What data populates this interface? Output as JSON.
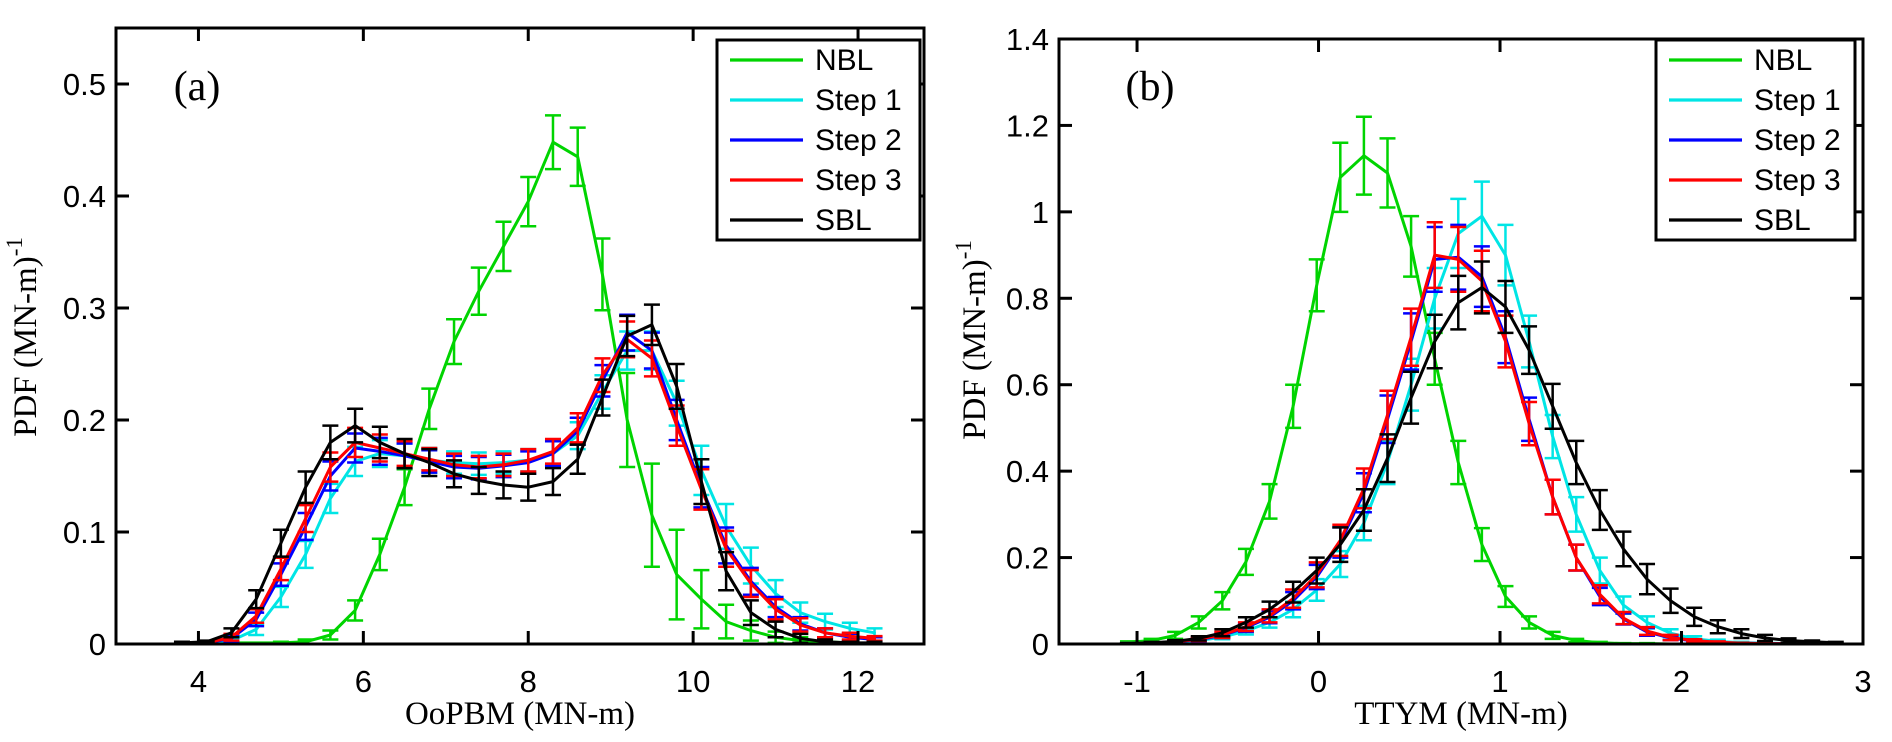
{
  "figure": {
    "background": "#ffffff",
    "axis_color": "#000000"
  },
  "chart_data": [
    {
      "id": "a",
      "type": "line",
      "panel_label": "(a)",
      "xlabel": "OoPBM (MN-m)",
      "ylabel": "PDF (MN-m)",
      "ylabel_exponent": "-1",
      "xlim": [
        3.0,
        12.8
      ],
      "ylim": [
        0,
        0.55
      ],
      "xticks": [
        4,
        6,
        8,
        10,
        12
      ],
      "xtick_labels": [
        "4",
        "6",
        "8",
        "10",
        "12"
      ],
      "yticks": [
        0,
        0.1,
        0.2,
        0.3,
        0.4,
        0.5
      ],
      "ytick_labels": [
        "0",
        "0.1",
        "0.2",
        "0.3",
        "0.4",
        "0.5"
      ],
      "grid": false,
      "legend_position": "top-right",
      "error_bars": true,
      "series": [
        {
          "name": "NBL",
          "color": "#00D400",
          "x": [
            3.8,
            4.1,
            4.4,
            4.7,
            5.0,
            5.3,
            5.6,
            5.9,
            6.2,
            6.5,
            6.8,
            7.1,
            7.4,
            7.7,
            8.0,
            8.3,
            8.6,
            8.9,
            9.2,
            9.5,
            9.8,
            10.1,
            10.4,
            10.7,
            11.0,
            11.3,
            11.6,
            11.9,
            12.2
          ],
          "y": [
            0,
            0,
            0.001,
            0.001,
            0.001,
            0.002,
            0.008,
            0.03,
            0.08,
            0.14,
            0.21,
            0.27,
            0.315,
            0.355,
            0.395,
            0.448,
            0.435,
            0.33,
            0.2,
            0.115,
            0.062,
            0.04,
            0.02,
            0.012,
            0.006,
            0.003,
            0.002,
            0.001,
            0
          ],
          "err": [
            0,
            0,
            0,
            0,
            0.001,
            0.002,
            0.004,
            0.009,
            0.014,
            0.016,
            0.018,
            0.02,
            0.021,
            0.022,
            0.022,
            0.024,
            0.026,
            0.032,
            0.042,
            0.046,
            0.04,
            0.026,
            0.015,
            0.009,
            0.005,
            0.003,
            0.002,
            0.001,
            0
          ]
        },
        {
          "name": "Step 1",
          "color": "#00E5E5",
          "x": [
            3.8,
            4.1,
            4.4,
            4.7,
            5.0,
            5.3,
            5.6,
            5.9,
            6.2,
            6.5,
            6.8,
            7.1,
            7.4,
            7.7,
            8.0,
            8.3,
            8.6,
            8.9,
            9.2,
            9.5,
            9.8,
            10.1,
            10.4,
            10.7,
            11.0,
            11.3,
            11.6,
            11.9,
            12.2
          ],
          "y": [
            0,
            0.001,
            0.003,
            0.013,
            0.042,
            0.08,
            0.13,
            0.163,
            0.17,
            0.168,
            0.164,
            0.162,
            0.161,
            0.162,
            0.164,
            0.17,
            0.186,
            0.225,
            0.262,
            0.262,
            0.215,
            0.155,
            0.105,
            0.07,
            0.045,
            0.028,
            0.02,
            0.014,
            0.01
          ],
          "err": [
            0,
            0.001,
            0.002,
            0.005,
            0.009,
            0.012,
            0.013,
            0.013,
            0.012,
            0.011,
            0.011,
            0.01,
            0.01,
            0.01,
            0.01,
            0.011,
            0.012,
            0.015,
            0.017,
            0.017,
            0.02,
            0.022,
            0.02,
            0.016,
            0.012,
            0.009,
            0.007,
            0.005,
            0.004
          ]
        },
        {
          "name": "Step 2",
          "color": "#0000FF",
          "x": [
            3.8,
            4.1,
            4.4,
            4.7,
            5.0,
            5.3,
            5.6,
            5.9,
            6.2,
            6.5,
            6.8,
            7.1,
            7.4,
            7.7,
            8.0,
            8.3,
            8.6,
            8.9,
            9.2,
            9.5,
            9.8,
            10.1,
            10.4,
            10.7,
            11.0,
            11.3,
            11.6,
            11.9,
            12.2
          ],
          "y": [
            0,
            0.001,
            0.005,
            0.022,
            0.062,
            0.105,
            0.15,
            0.175,
            0.172,
            0.168,
            0.163,
            0.158,
            0.157,
            0.159,
            0.162,
            0.17,
            0.19,
            0.235,
            0.278,
            0.262,
            0.2,
            0.14,
            0.088,
            0.056,
            0.033,
            0.018,
            0.01,
            0.006,
            0.004
          ],
          "err": [
            0,
            0.001,
            0.003,
            0.006,
            0.01,
            0.012,
            0.013,
            0.013,
            0.012,
            0.011,
            0.01,
            0.01,
            0.01,
            0.01,
            0.01,
            0.011,
            0.012,
            0.014,
            0.016,
            0.016,
            0.018,
            0.018,
            0.016,
            0.012,
            0.009,
            0.006,
            0.004,
            0.003,
            0.002
          ]
        },
        {
          "name": "Step 3",
          "color": "#FF0000",
          "x": [
            3.8,
            4.1,
            4.4,
            4.7,
            5.0,
            5.3,
            5.6,
            5.9,
            6.2,
            6.5,
            6.8,
            7.1,
            7.4,
            7.7,
            8.0,
            8.3,
            8.6,
            8.9,
            9.2,
            9.5,
            9.8,
            10.1,
            10.4,
            10.7,
            11.0,
            11.3,
            11.6,
            11.9,
            12.2
          ],
          "y": [
            0,
            0.001,
            0.006,
            0.025,
            0.067,
            0.112,
            0.158,
            0.18,
            0.175,
            0.17,
            0.165,
            0.16,
            0.158,
            0.16,
            0.164,
            0.172,
            0.193,
            0.24,
            0.272,
            0.255,
            0.195,
            0.138,
            0.085,
            0.054,
            0.031,
            0.017,
            0.01,
            0.007,
            0.005
          ],
          "err": [
            0,
            0.001,
            0.003,
            0.006,
            0.01,
            0.012,
            0.013,
            0.013,
            0.012,
            0.011,
            0.01,
            0.01,
            0.01,
            0.01,
            0.01,
            0.011,
            0.013,
            0.015,
            0.016,
            0.016,
            0.018,
            0.018,
            0.016,
            0.012,
            0.009,
            0.006,
            0.004,
            0.003,
            0.002
          ]
        },
        {
          "name": "SBL",
          "color": "#000000",
          "x": [
            3.8,
            4.1,
            4.4,
            4.7,
            5.0,
            5.3,
            5.6,
            5.9,
            6.2,
            6.5,
            6.8,
            7.1,
            7.4,
            7.7,
            8.0,
            8.3,
            8.6,
            8.9,
            9.2,
            9.5,
            9.8,
            10.1,
            10.4,
            10.7,
            11.0,
            11.3,
            11.6,
            11.9,
            12.2
          ],
          "y": [
            0.001,
            0.002,
            0.01,
            0.04,
            0.09,
            0.14,
            0.18,
            0.195,
            0.18,
            0.17,
            0.162,
            0.152,
            0.146,
            0.142,
            0.14,
            0.145,
            0.165,
            0.22,
            0.275,
            0.285,
            0.23,
            0.145,
            0.065,
            0.028,
            0.013,
            0.005,
            0.002,
            0.001,
            0.001
          ],
          "err": [
            0.001,
            0.001,
            0.004,
            0.008,
            0.012,
            0.014,
            0.015,
            0.015,
            0.014,
            0.013,
            0.012,
            0.012,
            0.012,
            0.012,
            0.012,
            0.012,
            0.013,
            0.016,
            0.018,
            0.018,
            0.02,
            0.02,
            0.017,
            0.011,
            0.007,
            0.004,
            0.002,
            0.001,
            0.001
          ]
        }
      ]
    },
    {
      "id": "b",
      "type": "line",
      "panel_label": "(b)",
      "xlabel": "TTYM (MN-m)",
      "ylabel": "PDF (MN-m)",
      "ylabel_exponent": "-1",
      "xlim": [
        -1.43,
        3.0
      ],
      "ylim": [
        0,
        1.4
      ],
      "xticks": [
        -1,
        0,
        1,
        2,
        3
      ],
      "xtick_labels": [
        "-1",
        "0",
        "1",
        "2",
        "3"
      ],
      "yticks": [
        0,
        0.2,
        0.4,
        0.6,
        0.8,
        1.0,
        1.2,
        1.4
      ],
      "ytick_labels": [
        "0",
        "0.2",
        "0.4",
        "0.6",
        "0.8",
        "1",
        "1.2",
        "1.4"
      ],
      "grid": false,
      "legend_position": "top-right",
      "error_bars": true,
      "series": [
        {
          "name": "NBL",
          "color": "#00D400",
          "x": [
            -1.05,
            -0.92,
            -0.79,
            -0.66,
            -0.53,
            -0.4,
            -0.27,
            -0.14,
            -0.01,
            0.12,
            0.25,
            0.38,
            0.51,
            0.64,
            0.77,
            0.9,
            1.03,
            1.16,
            1.29,
            1.42,
            1.55,
            1.68,
            1.81,
            1.94,
            2.07,
            2.2,
            2.33,
            2.46,
            2.59,
            2.72,
            2.85
          ],
          "y": [
            0.004,
            0.008,
            0.02,
            0.05,
            0.1,
            0.19,
            0.33,
            0.55,
            0.83,
            1.08,
            1.13,
            1.09,
            0.92,
            0.66,
            0.42,
            0.23,
            0.11,
            0.05,
            0.02,
            0.008,
            0.003,
            0.001,
            0.001,
            0,
            0,
            0,
            0,
            0,
            0,
            0,
            0
          ],
          "err": [
            0.002,
            0.004,
            0.008,
            0.014,
            0.02,
            0.03,
            0.04,
            0.05,
            0.06,
            0.08,
            0.09,
            0.08,
            0.07,
            0.06,
            0.05,
            0.038,
            0.024,
            0.014,
            0.008,
            0.004,
            0.002,
            0.001,
            0.001,
            0,
            0,
            0,
            0,
            0,
            0,
            0,
            0
          ]
        },
        {
          "name": "Step 1",
          "color": "#00E5E5",
          "x": [
            -1.05,
            -0.92,
            -0.79,
            -0.66,
            -0.53,
            -0.4,
            -0.27,
            -0.14,
            -0.01,
            0.12,
            0.25,
            0.38,
            0.51,
            0.64,
            0.77,
            0.9,
            1.03,
            1.16,
            1.29,
            1.42,
            1.55,
            1.68,
            1.81,
            1.94,
            2.07,
            2.2,
            2.33,
            2.46,
            2.59,
            2.72,
            2.85
          ],
          "y": [
            0.001,
            0.002,
            0.004,
            0.008,
            0.016,
            0.03,
            0.05,
            0.08,
            0.125,
            0.185,
            0.28,
            0.42,
            0.6,
            0.8,
            0.95,
            0.99,
            0.9,
            0.7,
            0.48,
            0.3,
            0.17,
            0.09,
            0.05,
            0.025,
            0.012,
            0.006,
            0.003,
            0.002,
            0.001,
            0.001,
            0
          ],
          "err": [
            0.001,
            0.001,
            0.002,
            0.003,
            0.005,
            0.008,
            0.012,
            0.018,
            0.025,
            0.03,
            0.04,
            0.05,
            0.06,
            0.07,
            0.08,
            0.08,
            0.07,
            0.06,
            0.05,
            0.04,
            0.03,
            0.02,
            0.014,
            0.009,
            0.006,
            0.004,
            0.002,
            0.002,
            0.001,
            0.001,
            0
          ]
        },
        {
          "name": "Step 2",
          "color": "#0000FF",
          "x": [
            -1.05,
            -0.92,
            -0.79,
            -0.66,
            -0.53,
            -0.4,
            -0.27,
            -0.14,
            -0.01,
            0.12,
            0.25,
            0.38,
            0.51,
            0.64,
            0.77,
            0.9,
            1.03,
            1.16,
            1.29,
            1.42,
            1.55,
            1.68,
            1.81,
            1.94,
            2.07,
            2.2,
            2.33,
            2.46,
            2.59,
            2.72,
            2.85
          ],
          "y": [
            0.001,
            0.002,
            0.005,
            0.01,
            0.02,
            0.038,
            0.062,
            0.1,
            0.155,
            0.235,
            0.35,
            0.52,
            0.7,
            0.89,
            0.895,
            0.85,
            0.71,
            0.52,
            0.34,
            0.2,
            0.11,
            0.058,
            0.028,
            0.014,
            0.007,
            0.003,
            0.002,
            0.001,
            0.001,
            0,
            0
          ],
          "err": [
            0.001,
            0.001,
            0.002,
            0.004,
            0.006,
            0.01,
            0.014,
            0.02,
            0.028,
            0.035,
            0.045,
            0.055,
            0.065,
            0.075,
            0.075,
            0.07,
            0.06,
            0.05,
            0.04,
            0.03,
            0.02,
            0.013,
            0.009,
            0.005,
            0.003,
            0.002,
            0.001,
            0.001,
            0.001,
            0,
            0
          ]
        },
        {
          "name": "Step 3",
          "color": "#FF0000",
          "x": [
            -1.05,
            -0.92,
            -0.79,
            -0.66,
            -0.53,
            -0.4,
            -0.27,
            -0.14,
            -0.01,
            0.12,
            0.25,
            0.38,
            0.51,
            0.64,
            0.77,
            0.9,
            1.03,
            1.16,
            1.29,
            1.42,
            1.55,
            1.68,
            1.81,
            1.94,
            2.07,
            2.2,
            2.33,
            2.46,
            2.59,
            2.72,
            2.85
          ],
          "y": [
            0.001,
            0.002,
            0.005,
            0.011,
            0.021,
            0.04,
            0.065,
            0.105,
            0.16,
            0.24,
            0.36,
            0.53,
            0.71,
            0.9,
            0.89,
            0.84,
            0.7,
            0.51,
            0.34,
            0.2,
            0.115,
            0.06,
            0.03,
            0.015,
            0.008,
            0.004,
            0.002,
            0.001,
            0.001,
            0,
            0
          ],
          "err": [
            0.001,
            0.001,
            0.002,
            0.004,
            0.007,
            0.01,
            0.015,
            0.021,
            0.029,
            0.036,
            0.046,
            0.056,
            0.066,
            0.076,
            0.075,
            0.07,
            0.06,
            0.05,
            0.04,
            0.03,
            0.021,
            0.014,
            0.009,
            0.006,
            0.003,
            0.002,
            0.001,
            0.001,
            0.001,
            0,
            0
          ]
        },
        {
          "name": "SBL",
          "color": "#000000",
          "x": [
            -1.05,
            -0.92,
            -0.79,
            -0.66,
            -0.53,
            -0.4,
            -0.27,
            -0.14,
            -0.01,
            0.12,
            0.25,
            0.38,
            0.51,
            0.64,
            0.77,
            0.9,
            1.03,
            1.16,
            1.29,
            1.42,
            1.55,
            1.68,
            1.81,
            1.94,
            2.07,
            2.2,
            2.33,
            2.46,
            2.59,
            2.72,
            2.85
          ],
          "y": [
            0.001,
            0.003,
            0.006,
            0.013,
            0.026,
            0.05,
            0.08,
            0.12,
            0.17,
            0.23,
            0.31,
            0.43,
            0.57,
            0.7,
            0.79,
            0.825,
            0.78,
            0.68,
            0.55,
            0.42,
            0.31,
            0.22,
            0.15,
            0.1,
            0.063,
            0.04,
            0.024,
            0.014,
            0.008,
            0.005,
            0.003
          ],
          "err": [
            0.001,
            0.002,
            0.003,
            0.005,
            0.008,
            0.012,
            0.018,
            0.024,
            0.03,
            0.04,
            0.048,
            0.055,
            0.06,
            0.062,
            0.062,
            0.06,
            0.06,
            0.055,
            0.052,
            0.05,
            0.046,
            0.04,
            0.035,
            0.028,
            0.021,
            0.015,
            0.01,
            0.007,
            0.005,
            0.003,
            0.002
          ]
        }
      ]
    }
  ]
}
